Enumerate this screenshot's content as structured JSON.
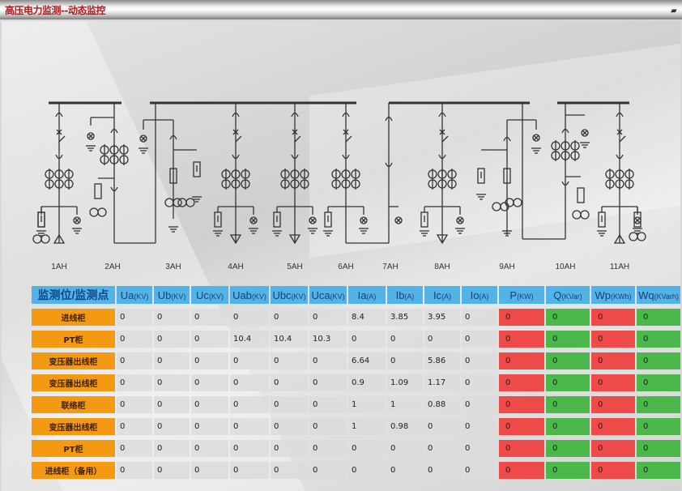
{
  "window": {
    "title": "高压电力监测--动态监控",
    "corner_icon": "window-restore-icon"
  },
  "diagram": {
    "cabinets": [
      "1AH",
      "2AH",
      "3AH",
      "4AH",
      "5AH",
      "6AH",
      "7AH",
      "8AH",
      "9AH",
      "10AH",
      "11AH"
    ]
  },
  "table": {
    "headers": [
      {
        "main": "监测位/监测点",
        "unit": ""
      },
      {
        "main": "Ua",
        "unit": "(KV)"
      },
      {
        "main": "Ub",
        "unit": "(KV)"
      },
      {
        "main": "Uc",
        "unit": "(KV)"
      },
      {
        "main": "Uab",
        "unit": "(KV)"
      },
      {
        "main": "Ubc",
        "unit": "(KV)"
      },
      {
        "main": "Uca",
        "unit": "(KV)"
      },
      {
        "main": "Ia",
        "unit": "(A)"
      },
      {
        "main": "Ib",
        "unit": "(A)"
      },
      {
        "main": "Ic",
        "unit": "(A)"
      },
      {
        "main": "Io",
        "unit": "(A)"
      },
      {
        "main": "P",
        "unit": "(KW)"
      },
      {
        "main": "Q",
        "unit": "(KVar)"
      },
      {
        "main": "Wp",
        "unit": "(KWh)"
      },
      {
        "main": "Wq",
        "unit": "(KVarh)"
      }
    ],
    "rows": [
      {
        "label": "进线柜",
        "values": [
          "0",
          "0",
          "0",
          "0",
          "0",
          "0",
          "8.4",
          "3.85",
          "3.95",
          "0",
          "0",
          "0",
          "0",
          "0"
        ]
      },
      {
        "label": "PT柜",
        "values": [
          "0",
          "0",
          "0",
          "10.4",
          "10.4",
          "10.3",
          "0",
          "0",
          "0",
          "0",
          "0",
          "0",
          "0",
          "0"
        ]
      },
      {
        "label": "变压器出线柜",
        "values": [
          "0",
          "0",
          "0",
          "0",
          "0",
          "0",
          "6.64",
          "0",
          "5.86",
          "0",
          "0",
          "0",
          "0",
          "0"
        ]
      },
      {
        "label": "变压器出线柜",
        "values": [
          "0",
          "0",
          "0",
          "0",
          "0",
          "0",
          "0.9",
          "1.09",
          "1.17",
          "0",
          "0",
          "0",
          "0",
          "0"
        ]
      },
      {
        "label": "联络柜",
        "values": [
          "0",
          "0",
          "0",
          "0",
          "0",
          "0",
          "1",
          "1",
          "0.88",
          "0",
          "0",
          "0",
          "0",
          "0"
        ]
      },
      {
        "label": "变压器出线柜",
        "values": [
          "0",
          "0",
          "0",
          "0",
          "0",
          "0",
          "1",
          "0.98",
          "0",
          "0",
          "0",
          "0",
          "0",
          "0"
        ]
      },
      {
        "label": "PT柜",
        "values": [
          "0",
          "0",
          "0",
          "0",
          "0",
          "0",
          "0",
          "0",
          "0",
          "0",
          "0",
          "0",
          "0",
          "0"
        ]
      },
      {
        "label": "进线柜（备用）",
        "values": [
          "0",
          "0",
          "0",
          "0",
          "0",
          "0",
          "0",
          "0",
          "0",
          "0",
          "0",
          "0",
          "0",
          "0"
        ]
      }
    ]
  },
  "colors": {
    "header": "#52b4e6",
    "label": "#f39a12",
    "power_active": "#ef4a4a",
    "power_reactive": "#4cb84c",
    "title": "#b01818"
  }
}
